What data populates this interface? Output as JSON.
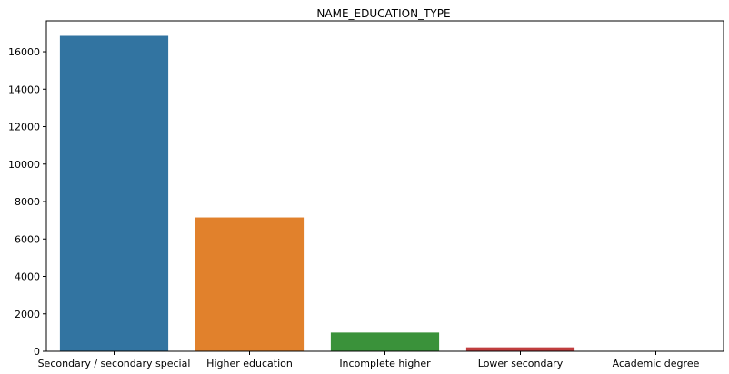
{
  "chart_data": {
    "type": "bar",
    "title": "NAME_EDUCATION_TYPE",
    "xlabel": "",
    "ylabel": "",
    "categories": [
      "Secondary / secondary special",
      "Higher education",
      "Incomplete higher",
      "Lower secondary",
      "Academic degree"
    ],
    "values": [
      16850,
      7150,
      1000,
      210,
      15
    ],
    "colors": [
      "#3274a1",
      "#e1812c",
      "#3a923a",
      "#c03d3e",
      "#9372b2"
    ],
    "ylim": [
      0,
      17650
    ],
    "yticks": [
      0,
      2000,
      4000,
      6000,
      8000,
      10000,
      12000,
      14000,
      16000
    ],
    "grid": false
  }
}
